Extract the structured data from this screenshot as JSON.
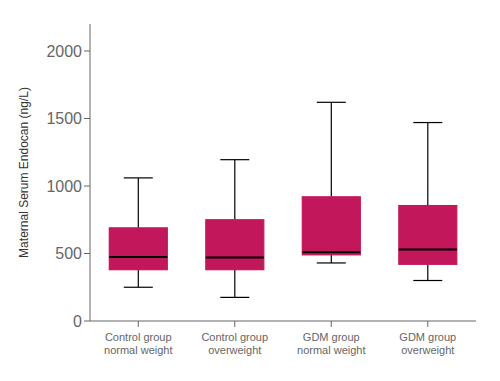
{
  "chart_data": {
    "type": "box",
    "categories": [
      "Control group\nnormal weight",
      "Control group\noverweight",
      "GDM group\nnormal weight",
      "GDM group\noverweight"
    ],
    "whislo": [
      250,
      175,
      430,
      300
    ],
    "q1": [
      380,
      380,
      490,
      420
    ],
    "med": [
      475,
      470,
      510,
      530
    ],
    "q3": [
      690,
      750,
      920,
      855
    ],
    "whishi": [
      1060,
      1195,
      1620,
      1470
    ],
    "color": "#C2185B",
    "ylabel": "Maternal Serum Endocan (ng/L)",
    "ylim": [
      0,
      2200
    ],
    "yticks": [
      0,
      500,
      1000,
      1500,
      2000
    ]
  }
}
